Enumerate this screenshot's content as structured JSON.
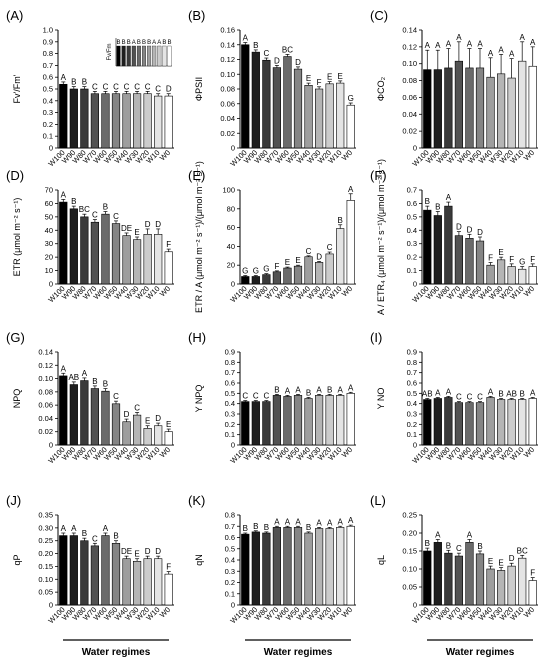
{
  "categories": [
    "W100",
    "W90",
    "W80",
    "W70",
    "W60",
    "W50",
    "W40",
    "W30",
    "W20",
    "W10",
    "W0"
  ],
  "colors": [
    "#000000",
    "#1e1e1e",
    "#3a3a3a",
    "#525252",
    "#6b6b6b",
    "#858585",
    "#9e9e9e",
    "#b5b5b5",
    "#cccccc",
    "#e4e4e4",
    "#ffffff"
  ],
  "water_regimes_label": "Water regimes",
  "chart_data": [
    {
      "type": "bar",
      "letter": "(A)",
      "ylabel": "Fv'/Fm'",
      "ylim": [
        0,
        1.0
      ],
      "yticks": [
        0,
        0.1,
        0.2,
        0.3,
        0.4,
        0.5,
        0.6,
        0.7,
        0.8,
        0.9,
        1.0
      ],
      "values": [
        0.54,
        0.5,
        0.5,
        0.46,
        0.46,
        0.46,
        0.46,
        0.46,
        0.46,
        0.44,
        0.44
      ],
      "errors": [
        0.02,
        0.02,
        0.02,
        0.02,
        0.02,
        0.02,
        0.02,
        0.02,
        0.02,
        0.02,
        0.02
      ],
      "letters": [
        "A",
        "B",
        "B",
        "C",
        "C",
        "C",
        "C",
        "C",
        "C",
        "C",
        "D"
      ],
      "inset": {
        "ylabel": "Fv/Fm",
        "letters": [
          "B",
          "B",
          "B",
          "A",
          "B",
          "B",
          "B",
          "A",
          "A",
          "B",
          "B"
        ]
      }
    },
    {
      "type": "bar",
      "letter": "(B)",
      "ylabel": "ΦPSII",
      "ylim": [
        0,
        0.16
      ],
      "yticks": [
        0,
        0.02,
        0.04,
        0.06,
        0.08,
        0.1,
        0.12,
        0.14,
        0.16
      ],
      "values": [
        0.14,
        0.13,
        0.119,
        0.109,
        0.124,
        0.107,
        0.085,
        0.08,
        0.087,
        0.088,
        0.058
      ],
      "errors": [
        0.003,
        0.003,
        0.003,
        0.003,
        0.003,
        0.003,
        0.003,
        0.003,
        0.003,
        0.003,
        0.003
      ],
      "letters": [
        "A",
        "B",
        "C",
        "D",
        "BC",
        "D",
        "E",
        "F",
        "E",
        "E",
        "G"
      ]
    },
    {
      "type": "bar",
      "letter": "(C)",
      "ylabel": "ΦCO₂",
      "ylim": [
        0,
        0.14
      ],
      "yticks": [
        0,
        0.02,
        0.04,
        0.06,
        0.08,
        0.1,
        0.12,
        0.14
      ],
      "values": [
        0.093,
        0.093,
        0.095,
        0.103,
        0.095,
        0.095,
        0.084,
        0.088,
        0.083,
        0.103,
        0.097
      ],
      "errors": [
        0.023,
        0.023,
        0.023,
        0.023,
        0.023,
        0.023,
        0.023,
        0.023,
        0.023,
        0.023,
        0.023
      ],
      "letters": [
        "A",
        "A",
        "A",
        "A",
        "A",
        "A",
        "A",
        "A",
        "A",
        "A",
        "A"
      ]
    },
    {
      "type": "bar",
      "letter": "(D)",
      "ylabel": "ETR (μmol m⁻² s⁻¹)",
      "ylim": [
        0,
        70
      ],
      "yticks": [
        0,
        10,
        20,
        30,
        40,
        50,
        60,
        70
      ],
      "values": [
        61,
        56,
        50,
        46,
        52,
        45,
        36,
        33,
        37,
        37,
        24
      ],
      "errors": [
        2,
        2,
        2,
        2,
        2,
        2,
        2,
        2,
        4,
        4,
        2
      ],
      "letters": [
        "A",
        "B",
        "BC",
        "C",
        "B",
        "C",
        "DE",
        "E",
        "D",
        "D",
        "F"
      ]
    },
    {
      "type": "bar",
      "letter": "(E)",
      "ylabel": "ETR / A (μmol m⁻² s⁻¹)/(μmol m⁻² s⁻¹)",
      "ylim": [
        0,
        100
      ],
      "yticks": [
        0,
        20,
        40,
        60,
        80,
        100
      ],
      "values": [
        8,
        8,
        10,
        13,
        17,
        19,
        29,
        23,
        32,
        59,
        89
      ],
      "errors": [
        1,
        1,
        1,
        1,
        1,
        1,
        1,
        1,
        2,
        4,
        7
      ],
      "letters": [
        "G",
        "G",
        "G",
        "F",
        "E",
        "E",
        "C",
        "D",
        "C",
        "B",
        "A"
      ]
    },
    {
      "type": "bar",
      "letter": "(F)",
      "ylabel": "A / ETR₄ (μmol m⁻² s⁻¹)/(μmol m⁻² s⁻¹)",
      "ylim": [
        0,
        0.7
      ],
      "yticks": [
        0,
        0.1,
        0.2,
        0.3,
        0.4,
        0.5,
        0.6,
        0.7
      ],
      "values": [
        0.55,
        0.51,
        0.58,
        0.36,
        0.34,
        0.32,
        0.14,
        0.18,
        0.13,
        0.11,
        0.13
      ],
      "errors": [
        0.03,
        0.03,
        0.03,
        0.03,
        0.03,
        0.03,
        0.02,
        0.02,
        0.02,
        0.02,
        0.02
      ],
      "letters": [
        "B",
        "B",
        "A",
        "D",
        "D",
        "D",
        "F",
        "E",
        "F",
        "G",
        "F"
      ]
    },
    {
      "type": "bar",
      "letter": "(G)",
      "ylabel": "NPQ",
      "ylim": [
        0,
        0.14
      ],
      "yticks": [
        0,
        0.02,
        0.04,
        0.06,
        0.08,
        0.1,
        0.12,
        0.14
      ],
      "values": [
        0.104,
        0.091,
        0.097,
        0.085,
        0.081,
        0.062,
        0.035,
        0.045,
        0.025,
        0.029,
        0.02
      ],
      "errors": [
        0.004,
        0.004,
        0.004,
        0.004,
        0.004,
        0.004,
        0.004,
        0.004,
        0.004,
        0.004,
        0.004
      ],
      "letters": [
        "A",
        "AB",
        "A",
        "B",
        "B",
        "C",
        "D",
        "C",
        "E",
        "D",
        "E"
      ]
    },
    {
      "type": "bar",
      "letter": "(H)",
      "ylabel": "Y NPQ",
      "ylim": [
        0,
        0.9
      ],
      "yticks": [
        0,
        0.1,
        0.2,
        0.3,
        0.4,
        0.5,
        0.6,
        0.7,
        0.8,
        0.9
      ],
      "values": [
        0.42,
        0.42,
        0.42,
        0.48,
        0.47,
        0.48,
        0.45,
        0.48,
        0.48,
        0.48,
        0.5
      ],
      "errors": [
        0.01,
        0.01,
        0.01,
        0.01,
        0.01,
        0.01,
        0.01,
        0.01,
        0.01,
        0.01,
        0.01
      ],
      "letters": [
        "C",
        "C",
        "C",
        "B",
        "A",
        "A",
        "B",
        "A",
        "B",
        "A",
        "A"
      ]
    },
    {
      "type": "bar",
      "letter": "(I)",
      "ylabel": "Y NO",
      "ylim": [
        0,
        0.9
      ],
      "yticks": [
        0,
        0.1,
        0.2,
        0.3,
        0.4,
        0.5,
        0.6,
        0.7,
        0.8,
        0.9
      ],
      "values": [
        0.44,
        0.45,
        0.46,
        0.41,
        0.41,
        0.41,
        0.46,
        0.44,
        0.44,
        0.44,
        0.45
      ],
      "errors": [
        0.01,
        0.01,
        0.01,
        0.01,
        0.01,
        0.01,
        0.01,
        0.01,
        0.01,
        0.01,
        0.01
      ],
      "letters": [
        "AB",
        "A",
        "A",
        "C",
        "C",
        "C",
        "A",
        "B",
        "AB",
        "B",
        "A"
      ]
    },
    {
      "type": "bar",
      "letter": "(J)",
      "ylabel": "qP",
      "ylim": [
        0,
        0.35
      ],
      "yticks": [
        0,
        0.05,
        0.1,
        0.15,
        0.2,
        0.25,
        0.3,
        0.35
      ],
      "values": [
        0.27,
        0.27,
        0.25,
        0.23,
        0.27,
        0.24,
        0.18,
        0.17,
        0.18,
        0.18,
        0.12
      ],
      "errors": [
        0.01,
        0.01,
        0.01,
        0.01,
        0.01,
        0.01,
        0.01,
        0.01,
        0.01,
        0.01,
        0.01
      ],
      "letters": [
        "A",
        "A",
        "B",
        "C",
        "A",
        "B",
        "DE",
        "E",
        "D",
        "D",
        "F"
      ]
    },
    {
      "type": "bar",
      "letter": "(K)",
      "ylabel": "qN",
      "ylim": [
        0,
        0.8
      ],
      "yticks": [
        0,
        0.1,
        0.2,
        0.3,
        0.4,
        0.5,
        0.6,
        0.7,
        0.8
      ],
      "values": [
        0.63,
        0.65,
        0.64,
        0.69,
        0.69,
        0.69,
        0.64,
        0.68,
        0.68,
        0.69,
        0.7
      ],
      "errors": [
        0.01,
        0.01,
        0.01,
        0.01,
        0.01,
        0.01,
        0.01,
        0.01,
        0.01,
        0.01,
        0.01
      ],
      "letters": [
        "B",
        "B",
        "B",
        "A",
        "A",
        "A",
        "B",
        "A",
        "A",
        "A",
        "A"
      ]
    },
    {
      "type": "bar",
      "letter": "(L)",
      "ylabel": "qL",
      "ylim": [
        0,
        0.25
      ],
      "yticks": [
        0,
        0.05,
        0.1,
        0.15,
        0.2,
        0.25
      ],
      "values": [
        0.15,
        0.174,
        0.144,
        0.136,
        0.174,
        0.142,
        0.1,
        0.096,
        0.108,
        0.13,
        0.068
      ],
      "errors": [
        0.008,
        0.008,
        0.008,
        0.008,
        0.008,
        0.008,
        0.008,
        0.008,
        0.008,
        0.008,
        0.008
      ],
      "letters": [
        "B",
        "A",
        "B",
        "C",
        "A",
        "B",
        "E",
        "E",
        "D",
        "BC",
        "F"
      ]
    }
  ]
}
